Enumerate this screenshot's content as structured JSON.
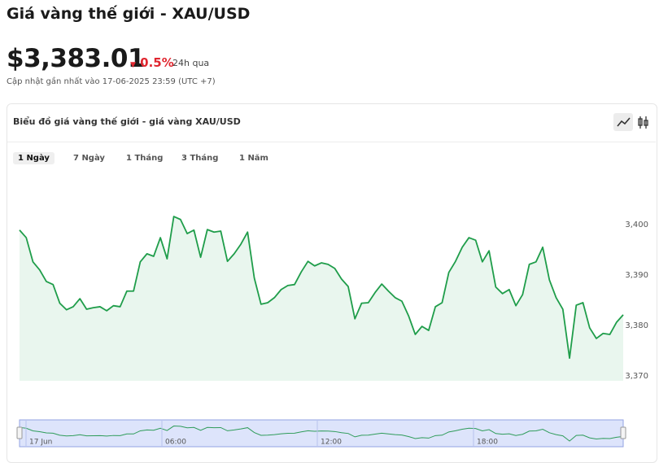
{
  "header": {
    "title": "Giá vàng thế giới - XAU/USD",
    "price": "$3,383.01",
    "change": "0.5%",
    "period": "24h qua",
    "updated": "Cập nhật gần nhất vào 17-06-2025 23:59 (UTC +7)"
  },
  "card": {
    "title": "Biểu đồ giá vàng thế giới - giá vàng XAU/USD",
    "tabs": [
      "1 Ngày",
      "7 Ngày",
      "1 Tháng",
      "3 Tháng",
      "1 Năm"
    ],
    "active_tab": 0
  },
  "chart_data": {
    "type": "area",
    "color": "#1f9d4a",
    "fill": "#e9f6ee",
    "values": [
      3398.9,
      3397.4,
      3392.6,
      3391.0,
      3388.7,
      3388.1,
      3384.4,
      3383.1,
      3383.7,
      3385.3,
      3383.2,
      3383.5,
      3383.7,
      3382.9,
      3383.9,
      3383.7,
      3386.8,
      3386.8,
      3392.6,
      3394.2,
      3393.7,
      3397.4,
      3393.2,
      3401.6,
      3401.0,
      3398.2,
      3398.9,
      3393.5,
      3399.0,
      3398.5,
      3398.7,
      3392.7,
      3394.2,
      3396.1,
      3398.5,
      3389.4,
      3384.2,
      3384.5,
      3385.5,
      3387.1,
      3387.9,
      3388.1,
      3390.6,
      3392.7,
      3391.8,
      3392.4,
      3392.1,
      3391.3,
      3389.2,
      3387.7,
      3381.3,
      3384.4,
      3384.5,
      3386.5,
      3388.2,
      3386.8,
      3385.5,
      3384.8,
      3381.9,
      3378.2,
      3379.8,
      3379.0,
      3383.7,
      3384.5,
      3390.5,
      3392.7,
      3395.5,
      3397.4,
      3396.9,
      3392.6,
      3394.8,
      3387.6,
      3386.3,
      3387.1,
      3383.9,
      3386.1,
      3392.1,
      3392.6,
      3395.5,
      3389.0,
      3385.5,
      3383.2,
      3373.5,
      3384.0,
      3384.5,
      3379.5,
      3377.4,
      3378.4,
      3378.2,
      3380.6,
      3382.1
    ],
    "ylim": [
      3369,
      3410
    ],
    "yticks": [
      {
        "value": 3370,
        "label": "3,370"
      },
      {
        "value": 3380,
        "label": "3,380"
      },
      {
        "value": 3390,
        "label": "3,390"
      },
      {
        "value": 3400,
        "label": "3,400"
      }
    ],
    "navigator_labels": [
      "17 Jun",
      "06:00",
      "12:00",
      "18:00"
    ]
  }
}
